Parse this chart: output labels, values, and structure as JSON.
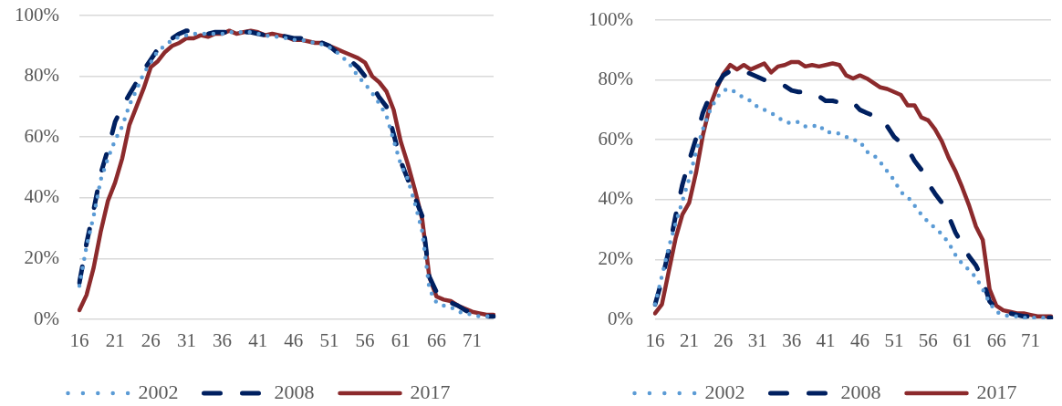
{
  "chart_data": [
    {
      "type": "line",
      "categories": [
        "16",
        null,
        null,
        null,
        null,
        "21",
        null,
        null,
        null,
        null,
        "26",
        null,
        null,
        null,
        null,
        "31",
        null,
        null,
        null,
        null,
        "36",
        null,
        null,
        null,
        null,
        "41",
        null,
        null,
        null,
        null,
        "46",
        null,
        null,
        null,
        null,
        "51",
        null,
        null,
        null,
        null,
        "56",
        null,
        null,
        null,
        null,
        "61",
        null,
        null,
        null,
        null,
        "66",
        null,
        null,
        null,
        null,
        "71",
        null,
        null,
        null
      ],
      "series": [
        {
          "name": "2002",
          "color": "#5b9bd5",
          "line_style": "dotted",
          "values": [
            11,
            24,
            34,
            46,
            53,
            59,
            63.5,
            70.5,
            75.5,
            81,
            84.5,
            88.5,
            90,
            92,
            93,
            93.5,
            94,
            94,
            94,
            94,
            94,
            94.5,
            94.5,
            94.5,
            94.5,
            94,
            93.5,
            93,
            93,
            92.5,
            92,
            92,
            91.5,
            91,
            90.5,
            89.5,
            88,
            86,
            83.5,
            80,
            77.5,
            74.5,
            71,
            67,
            59,
            51,
            46,
            38,
            29,
            10,
            5.5,
            4.5,
            4,
            2.5,
            2,
            1.5,
            1,
            1,
            1
          ]
        },
        {
          "name": "2008",
          "color": "#002060",
          "line_style": "dashed",
          "values": [
            12,
            25,
            36,
            48,
            56,
            65,
            70,
            74,
            78,
            82,
            85.5,
            89,
            91,
            92.5,
            94,
            95,
            95,
            94,
            94,
            94.5,
            94.5,
            94.5,
            94.5,
            94.5,
            94.5,
            94,
            93.5,
            93.5,
            93.5,
            93,
            92.5,
            92.5,
            91.5,
            91,
            91,
            90,
            88,
            87,
            85,
            83,
            80,
            77,
            73,
            70,
            61,
            52,
            46,
            40,
            34,
            14,
            9,
            6,
            5.5,
            4.5,
            3,
            2,
            1.5,
            1,
            1
          ]
        },
        {
          "name": "2017",
          "color": "#8c2a2c",
          "line_style": "solid",
          "values": [
            3,
            8,
            17,
            29,
            39,
            45,
            53,
            64,
            70,
            76,
            83,
            85,
            88,
            90,
            91,
            92.5,
            92.5,
            93.5,
            93,
            94,
            94,
            95,
            94,
            94.5,
            95,
            94.5,
            93.5,
            94,
            93.5,
            93,
            92,
            92,
            91.5,
            91,
            91,
            90,
            89,
            88,
            87,
            86,
            84.5,
            80,
            78,
            75,
            69,
            58.5,
            51,
            42.5,
            33,
            14,
            7.5,
            6.5,
            6,
            4.5,
            3.5,
            2.5,
            2,
            1.5,
            1.5
          ]
        }
      ],
      "ylim": [
        0,
        100
      ],
      "yticks": [
        {
          "value": 0,
          "label": "0%"
        },
        {
          "value": 20,
          "label": "20%"
        },
        {
          "value": 40,
          "label": "40%"
        },
        {
          "value": 60,
          "label": "60%"
        },
        {
          "value": 80,
          "label": "80%"
        },
        {
          "value": 100,
          "label": "100%"
        }
      ],
      "grid": "y",
      "legend": "bottom",
      "marker": "none"
    },
    {
      "type": "line",
      "categories": [
        "16",
        null,
        null,
        null,
        null,
        "21",
        null,
        null,
        null,
        null,
        "26",
        null,
        null,
        null,
        null,
        "31",
        null,
        null,
        null,
        null,
        "36",
        null,
        null,
        null,
        null,
        "41",
        null,
        null,
        null,
        null,
        "46",
        null,
        null,
        null,
        null,
        "51",
        null,
        null,
        null,
        null,
        "56",
        null,
        null,
        null,
        null,
        "61",
        null,
        null,
        null,
        null,
        "66",
        null,
        null,
        null,
        null,
        "71",
        null,
        null,
        null
      ],
      "series": [
        {
          "name": "2002",
          "color": "#5b9bd5",
          "line_style": "dotted",
          "values": [
            5,
            14.5,
            24,
            32,
            39.5,
            47,
            56,
            63.5,
            69.5,
            74,
            76.5,
            77,
            75.5,
            74,
            73,
            71,
            70,
            69,
            67.5,
            66,
            65.5,
            66,
            64.5,
            64.5,
            65,
            62.5,
            62.5,
            62,
            61,
            60,
            59.5,
            56,
            55,
            52.5,
            49.5,
            46.5,
            42.5,
            41,
            38,
            35,
            32.5,
            30.5,
            28.5,
            25.5,
            21.5,
            18.5,
            16.5,
            14,
            10,
            5.5,
            2.5,
            1.5,
            1,
            1,
            0.5,
            0.5,
            0.5,
            0.5,
            0.5
          ]
        },
        {
          "name": "2008",
          "color": "#002060",
          "line_style": "dashed",
          "values": [
            5,
            13,
            23,
            34.5,
            45,
            53,
            60.5,
            69,
            74.5,
            78,
            81.5,
            83,
            82.5,
            83,
            82,
            81,
            80,
            79.5,
            79,
            78,
            76.5,
            76,
            76,
            75.5,
            74.5,
            73,
            73,
            72.5,
            72.5,
            72.5,
            70,
            69,
            68,
            67,
            64.5,
            61,
            59,
            57,
            53,
            50,
            45.5,
            42,
            39,
            34.5,
            29,
            25,
            21,
            18,
            13,
            6,
            3.5,
            2.5,
            2,
            1.5,
            1,
            1,
            1,
            0.5,
            0.5
          ]
        },
        {
          "name": "2017",
          "color": "#8c2a2c",
          "line_style": "solid",
          "values": [
            2,
            5,
            16,
            27,
            35,
            39,
            49,
            61.5,
            71,
            77,
            82,
            85,
            83.5,
            85,
            83.5,
            84.5,
            85.5,
            82.5,
            84.5,
            85,
            86,
            86,
            84.5,
            85,
            84.5,
            85,
            85.5,
            85,
            81.5,
            80.5,
            81.5,
            80.5,
            79,
            77.5,
            77,
            76,
            75,
            71.5,
            71.5,
            67.5,
            66.5,
            63.5,
            59.5,
            54,
            49.5,
            44,
            38,
            31,
            26.5,
            10,
            4.5,
            3,
            2.5,
            2,
            2,
            1.5,
            1,
            1,
            1
          ]
        }
      ],
      "ylim": [
        0,
        100
      ],
      "yticks": [
        {
          "value": 0,
          "label": "0%"
        },
        {
          "value": 20,
          "label": "20%"
        },
        {
          "value": 40,
          "label": "40%"
        },
        {
          "value": 60,
          "label": "60%"
        },
        {
          "value": 80,
          "label": "80%"
        },
        {
          "value": 100,
          "label": "100%"
        }
      ],
      "grid": "y",
      "legend": "bottom",
      "marker": "none"
    }
  ]
}
